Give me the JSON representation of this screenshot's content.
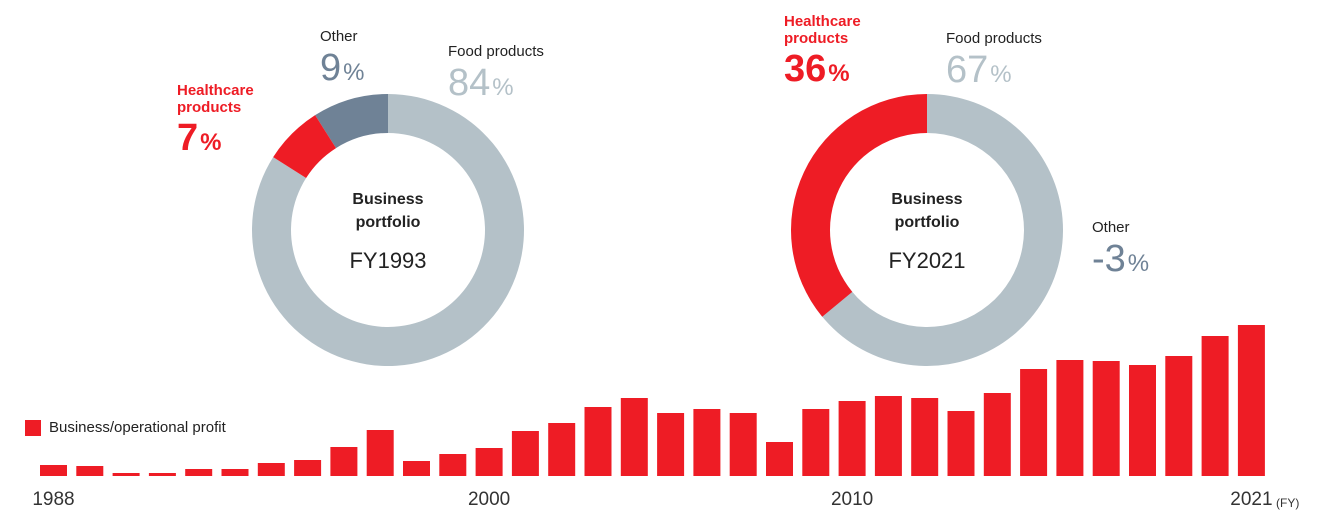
{
  "chart_data": [
    {
      "type": "donut",
      "title": "Business portfolio",
      "subtitle": "FY1993",
      "unit": "%",
      "categories": [
        "Food products",
        "Healthcare products",
        "Other"
      ],
      "values": [
        84,
        7,
        9
      ],
      "colors": [
        "#b4c1c8",
        "#ee1c25",
        "#6f8296"
      ]
    },
    {
      "type": "donut",
      "title": "Business portfolio",
      "subtitle": "FY2021",
      "unit": "%",
      "categories": [
        "Food products",
        "Healthcare products",
        "Other"
      ],
      "values": [
        67,
        36,
        -3
      ],
      "colors": [
        "#b4c1c8",
        "#ee1c25",
        "#6f8296"
      ]
    },
    {
      "type": "bar",
      "x_label": "(FY)",
      "categories": [
        "1988",
        null,
        null,
        null,
        null,
        null,
        null,
        null,
        null,
        null,
        null,
        null,
        "2000",
        null,
        null,
        null,
        null,
        null,
        null,
        null,
        null,
        null,
        "2010",
        null,
        null,
        null,
        null,
        null,
        null,
        null,
        null,
        null,
        null,
        "2021"
      ],
      "series": [
        {
          "name": "Business/operational profit",
          "color": "#ee1c25",
          "values": [
            11,
            10,
            3,
            3,
            7,
            7,
            13,
            16,
            29,
            46,
            15,
            22,
            28,
            45,
            53,
            69,
            78,
            63,
            67,
            63,
            34,
            67,
            75,
            80,
            78,
            65,
            83,
            107,
            116,
            115,
            111,
            120,
            140,
            151
          ]
        }
      ]
    }
  ]
}
